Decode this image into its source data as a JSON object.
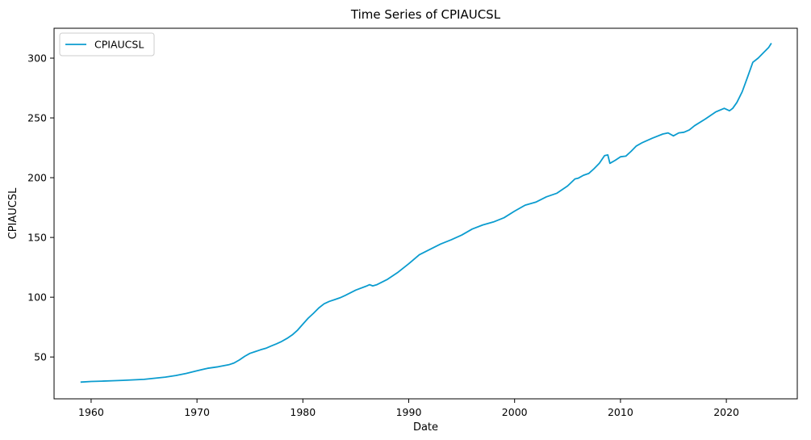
{
  "chart_data": {
    "type": "line",
    "title": "Time Series of CPIAUCSL",
    "xlabel": "Date",
    "ylabel": "CPIAUCSL",
    "xlim": [
      1956.5,
      2026.7
    ],
    "ylim": [
      15,
      325
    ],
    "x_ticks": [
      1960,
      1970,
      1980,
      1990,
      2000,
      2010,
      2020
    ],
    "y_ticks": [
      50,
      100,
      150,
      200,
      250,
      300
    ],
    "grid": false,
    "legend": {
      "placement": "upper-left",
      "entries": [
        "CPIAUCSL"
      ]
    },
    "line_color": "#0b9ccf",
    "series": [
      {
        "name": "CPIAUCSL",
        "x": [
          1959.0,
          1960.0,
          1961.0,
          1962.0,
          1963.0,
          1964.0,
          1965.0,
          1966.0,
          1967.0,
          1968.0,
          1969.0,
          1970.0,
          1971.0,
          1972.0,
          1973.0,
          1973.5,
          1974.0,
          1974.5,
          1975.0,
          1975.5,
          1976.0,
          1976.5,
          1977.0,
          1977.5,
          1978.0,
          1978.5,
          1979.0,
          1979.5,
          1980.0,
          1980.5,
          1981.0,
          1981.5,
          1982.0,
          1982.5,
          1983.0,
          1983.5,
          1984.0,
          1985.0,
          1986.0,
          1986.3,
          1986.6,
          1987.0,
          1988.0,
          1989.0,
          1990.0,
          1991.0,
          1992.0,
          1993.0,
          1994.0,
          1995.0,
          1996.0,
          1997.0,
          1998.0,
          1999.0,
          2000.0,
          2001.0,
          2002.0,
          2003.0,
          2004.0,
          2005.0,
          2005.7,
          2006.0,
          2006.5,
          2007.0,
          2007.5,
          2008.0,
          2008.5,
          2008.8,
          2009.0,
          2009.5,
          2010.0,
          2010.5,
          2011.0,
          2011.5,
          2012.0,
          2013.0,
          2014.0,
          2014.5,
          2015.0,
          2015.5,
          2016.0,
          2016.5,
          2017.0,
          2018.0,
          2019.0,
          2019.8,
          2020.3,
          2020.6,
          2021.0,
          2021.5,
          2022.0,
          2022.5,
          2023.0,
          2023.5,
          2024.0,
          2024.25
        ],
        "values": [
          29.0,
          29.5,
          29.8,
          30.1,
          30.5,
          30.9,
          31.3,
          32.2,
          33.2,
          34.5,
          36.3,
          38.5,
          40.5,
          41.8,
          43.5,
          45.0,
          47.5,
          50.5,
          53.0,
          54.5,
          56.0,
          57.3,
          59.2,
          61.0,
          63.0,
          65.5,
          68.5,
          72.5,
          77.5,
          82.5,
          86.5,
          91.0,
          94.5,
          96.5,
          98.0,
          99.5,
          101.5,
          106.0,
          109.3,
          110.5,
          109.5,
          110.5,
          115.0,
          121.0,
          128.0,
          135.5,
          140.0,
          144.5,
          148.0,
          152.0,
          157.0,
          160.5,
          163.0,
          166.5,
          172.0,
          177.0,
          179.5,
          184.0,
          187.0,
          193.0,
          199.0,
          199.5,
          202.0,
          203.5,
          207.5,
          212.0,
          218.5,
          219.0,
          212.0,
          214.5,
          217.5,
          218.0,
          222.0,
          226.5,
          229.0,
          233.0,
          236.5,
          237.5,
          235.0,
          237.5,
          238.0,
          240.0,
          243.5,
          249.0,
          255.0,
          258.0,
          256.0,
          258.0,
          263.0,
          272.0,
          284.0,
          296.5,
          300.0,
          304.5,
          309.0,
          312.5
        ]
      }
    ]
  }
}
